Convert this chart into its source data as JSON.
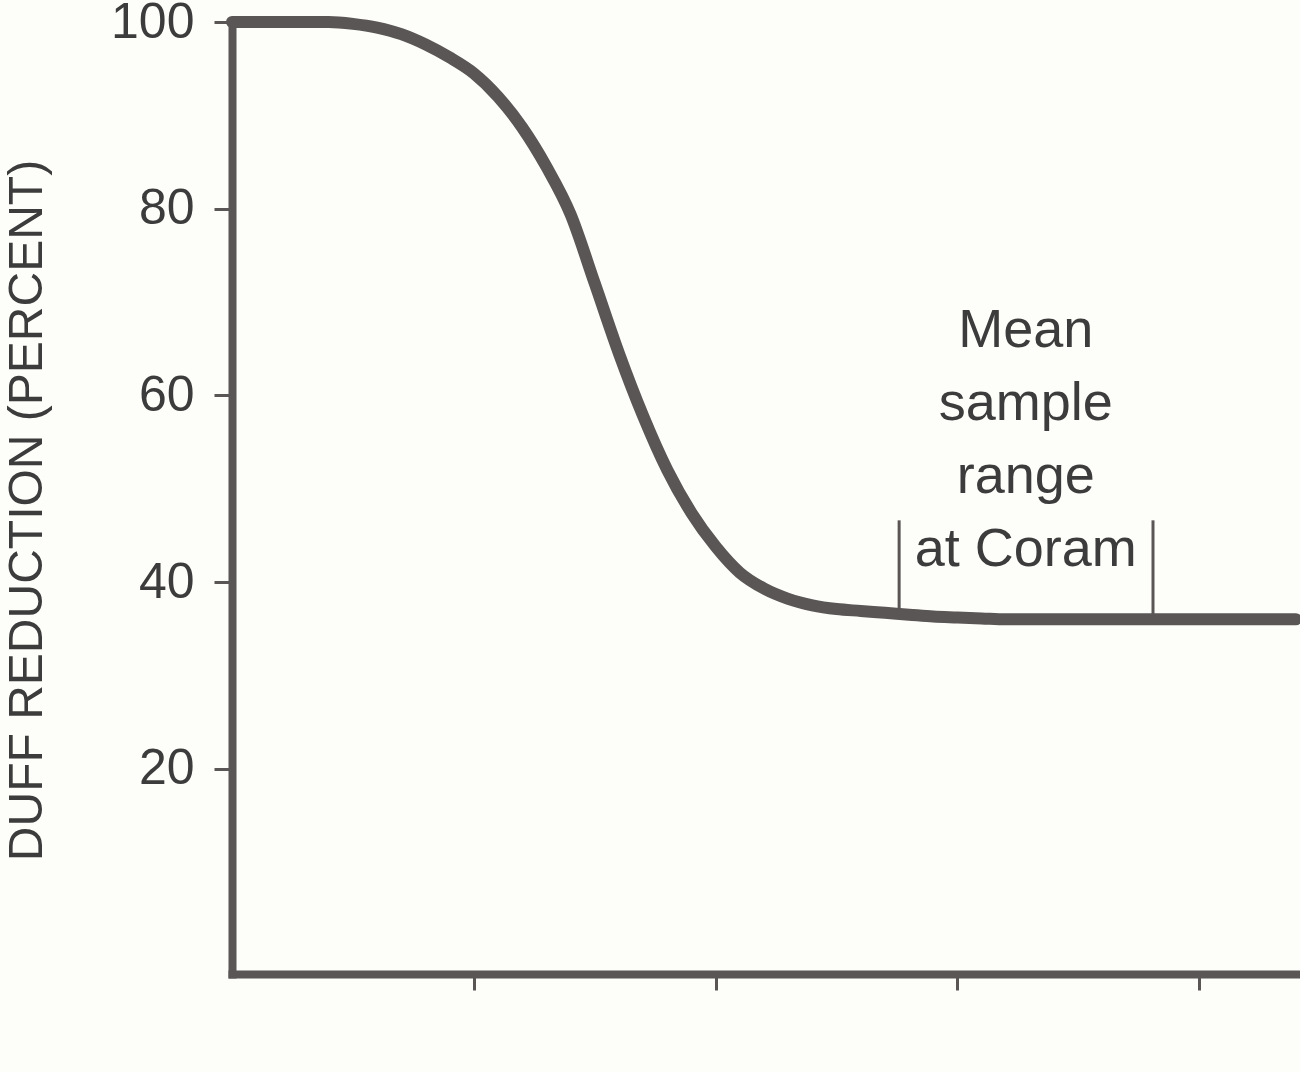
{
  "chart_data": {
    "type": "line",
    "ylabel": "DUFF REDUCTION (PERCENT)",
    "categories": [
      null,
      null,
      null,
      null,
      null,
      null,
      null,
      null,
      null,
      null,
      null,
      null,
      null,
      null,
      null,
      null,
      null,
      null,
      null,
      null,
      null,
      null,
      null,
      null,
      null,
      null,
      null,
      null,
      null,
      null,
      null,
      null,
      null,
      null,
      null,
      null,
      null,
      null,
      null,
      null,
      null,
      null,
      null,
      null,
      null
    ],
    "series": [
      {
        "color": "#5a5656",
        "values": [
          100,
          100,
          100,
          100,
          100,
          99.8,
          99.4,
          98.7,
          97.6,
          96.2,
          94.5,
          92.0,
          88.7,
          84.5,
          79.4,
          72.0,
          64.5,
          57.8,
          52.0,
          47.4,
          43.8,
          41.0,
          39.3,
          38.2,
          37.5,
          37.1,
          36.9,
          36.7,
          36.5,
          36.3,
          36.2,
          36.1,
          36,
          36,
          36,
          36,
          36,
          36,
          36,
          36,
          36,
          36,
          36,
          36,
          36
        ]
      }
    ],
    "ylim": [
      -2,
      100
    ],
    "yticks": [
      20,
      40,
      60,
      80,
      100
    ],
    "tick_labels": "y",
    "line_style": "solid",
    "annotations": [
      {
        "text": "Mean sample range at Coram",
        "y": 36
      }
    ]
  }
}
